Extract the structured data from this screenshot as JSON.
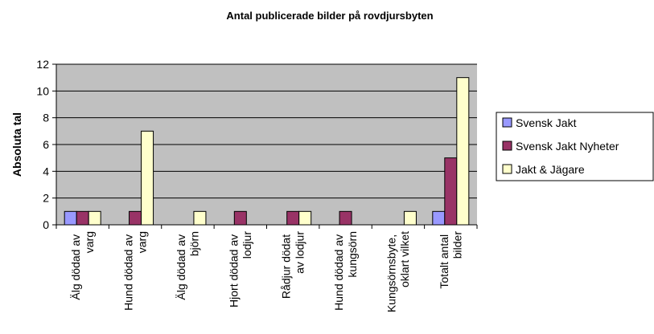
{
  "chart_data": {
    "type": "bar",
    "title": "Antal publicerade bilder på rovdjursbyten",
    "y_label": "Absoluta tal",
    "categories": [
      "Älg dödad av varg",
      "Hund dödad av varg",
      "Älg dödad av björn",
      "Hjort dödad av lodjur",
      "Rådjur dödat av lodjur",
      "Hund dödad av kungsörn",
      "Kungsörnsbyte, oklart vilket",
      "Totalt antal bilder"
    ],
    "series": [
      {
        "name": "Svensk Jakt",
        "color": "#9999ff",
        "values": [
          1,
          0,
          0,
          0,
          0,
          0,
          0,
          1
        ]
      },
      {
        "name": "Svensk Jakt Nyheter",
        "color": "#993366",
        "values": [
          1,
          1,
          0,
          1,
          1,
          1,
          0,
          5
        ]
      },
      {
        "name": "Jakt & Jägare",
        "color": "#ffffcc",
        "values": [
          1,
          7,
          1,
          0,
          1,
          0,
          1,
          11
        ]
      }
    ],
    "ylim": [
      0,
      12
    ],
    "yticks": [
      0,
      2,
      4,
      6,
      8,
      10,
      12
    ],
    "grid": true,
    "legend": "right"
  }
}
